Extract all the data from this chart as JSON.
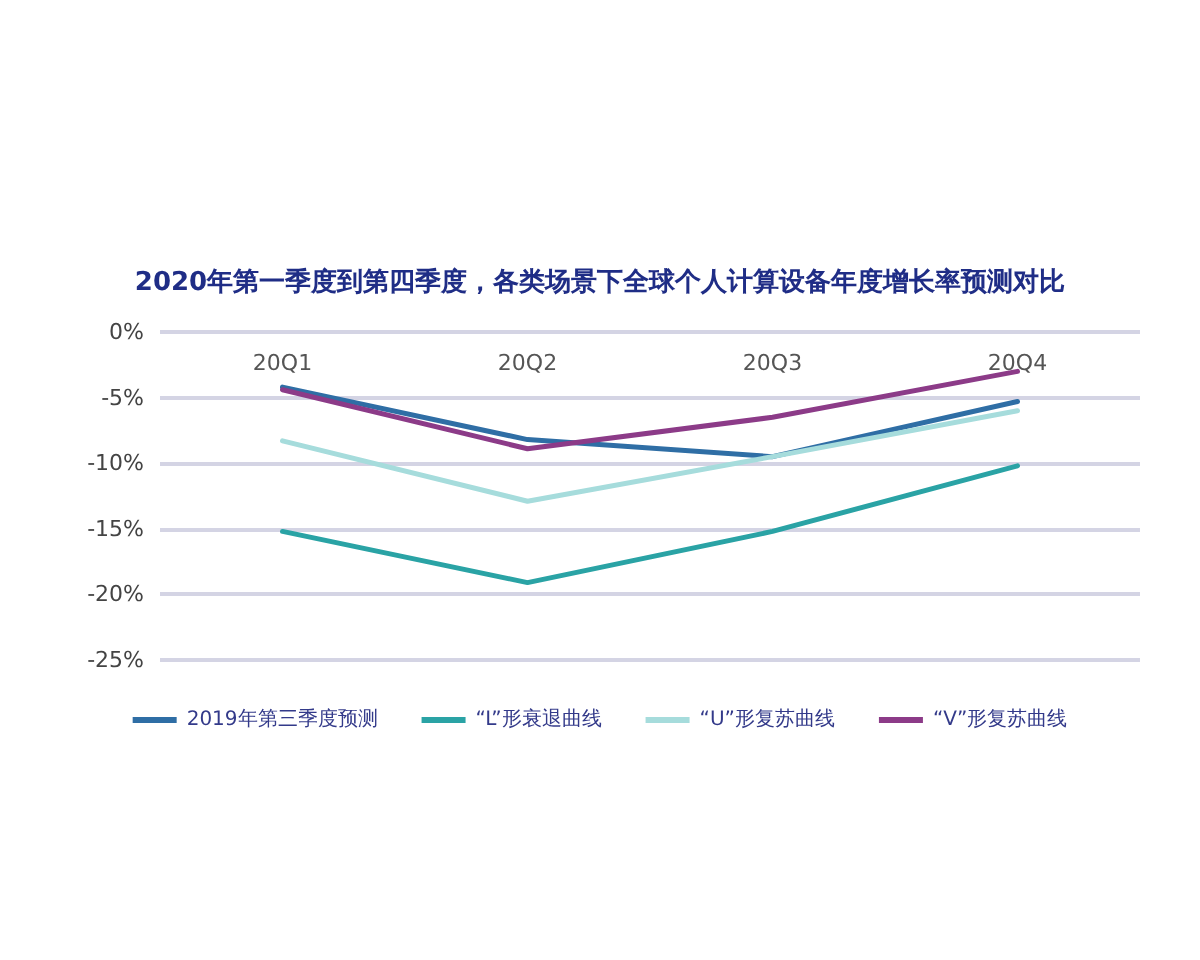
{
  "chart_data": {
    "type": "line",
    "title": "2020年第一季度到第四季度，各类场景下全球个人计算设备年度增长率预测对比",
    "categories": [
      "20Q1",
      "20Q2",
      "20Q3",
      "20Q4"
    ],
    "series": [
      {
        "name": "2019年第三季度预测",
        "color": "#2f6ea5",
        "values": [
          -4.2,
          -8.2,
          -9.5,
          -5.3
        ]
      },
      {
        "name": "“L”形衰退曲线",
        "color": "#2aa3a5",
        "values": [
          -15.2,
          -19.1,
          -15.2,
          -10.2
        ]
      },
      {
        "name": "“U”形复苏曲线",
        "color": "#a6dcdc",
        "values": [
          -8.3,
          -12.9,
          -9.5,
          -6
        ]
      },
      {
        "name": "“V”形复苏曲线",
        "color": "#8c3b88",
        "values": [
          -4.4,
          -8.9,
          -6.5,
          -3
        ]
      }
    ],
    "ylim": [
      -25,
      0
    ],
    "yticks": [
      {
        "value": -25,
        "label": "-25%"
      },
      {
        "value": -20,
        "label": "-20%"
      },
      {
        "value": -15,
        "label": "-15%"
      },
      {
        "value": -10,
        "label": "-10%"
      },
      {
        "value": -5,
        "label": "-5%"
      },
      {
        "value": 0,
        "label": "0%"
      }
    ],
    "grid": "y",
    "legend": "bottom",
    "marker": "none",
    "line_style": "solid"
  }
}
